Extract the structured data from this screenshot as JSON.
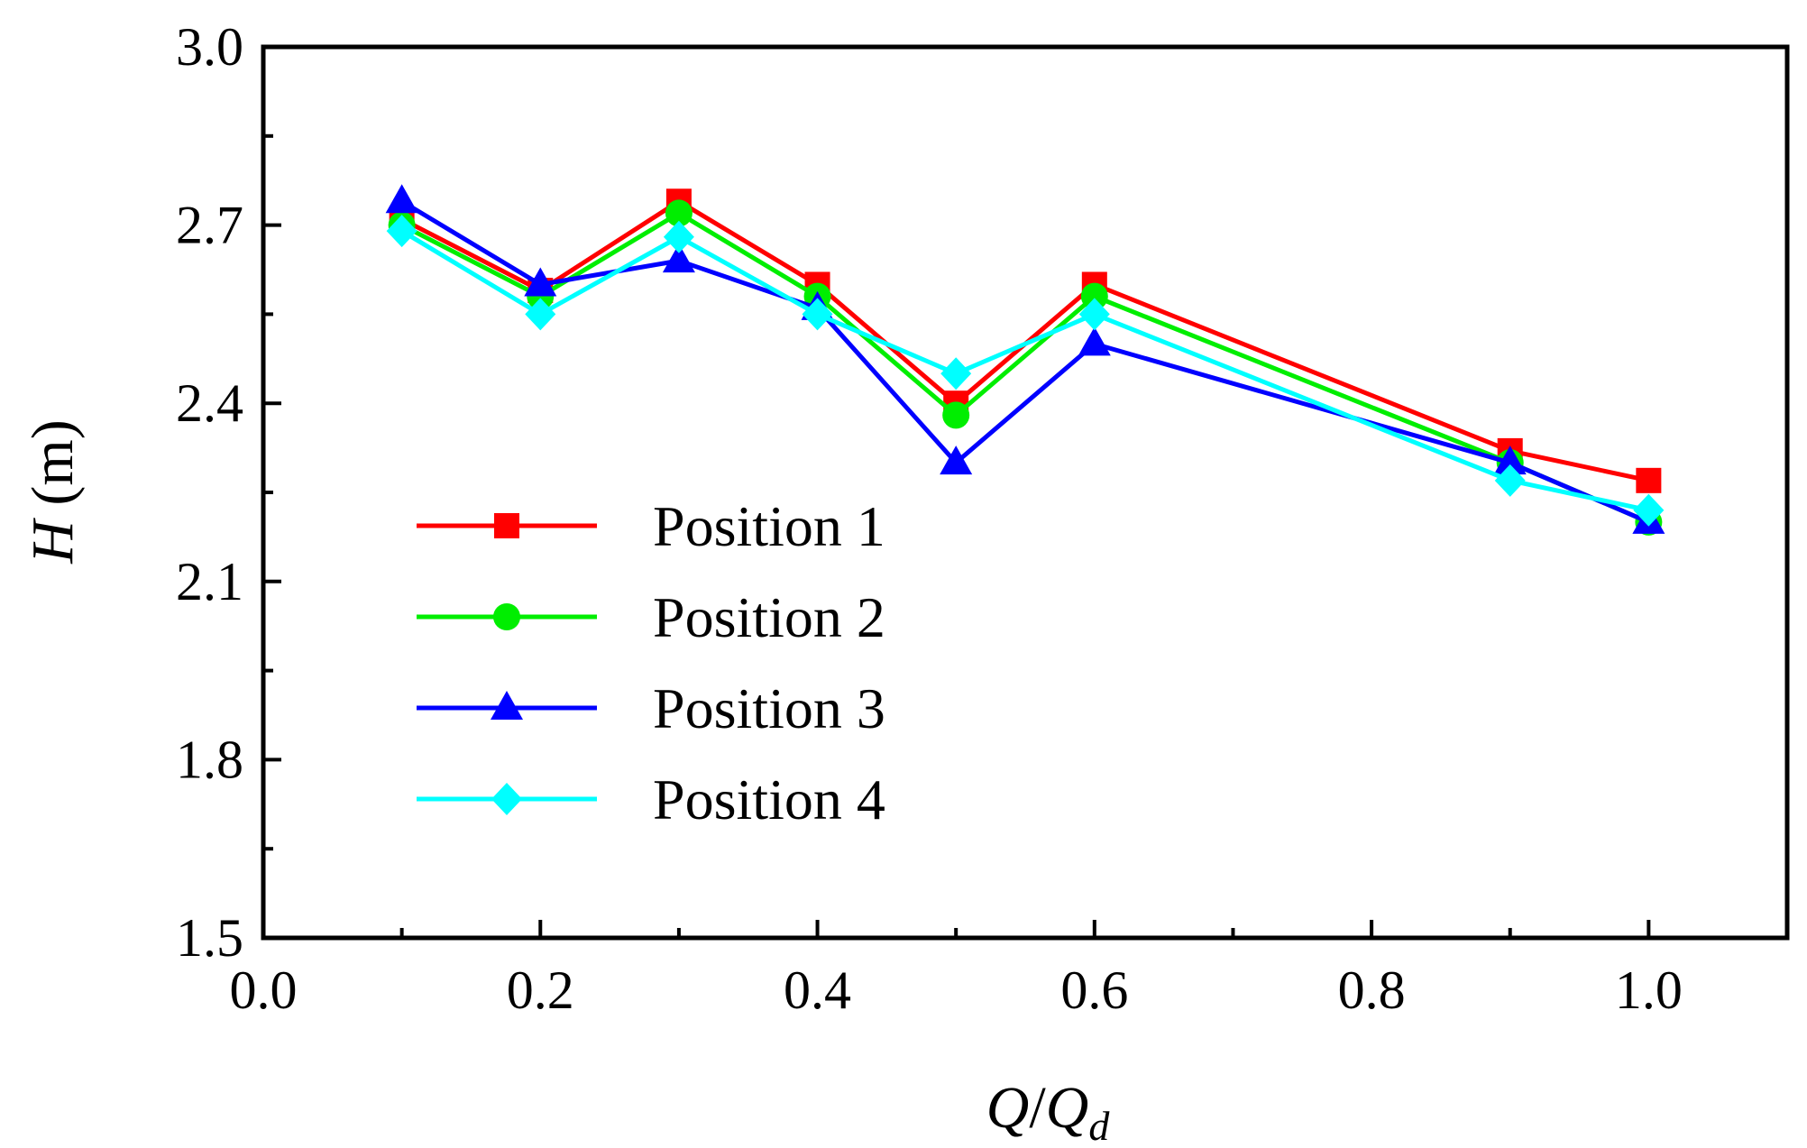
{
  "chart_data": {
    "type": "line",
    "x": [
      0.1,
      0.2,
      0.3,
      0.4,
      0.5,
      0.6,
      0.9,
      1.0
    ],
    "series": [
      {
        "name": "Position 1",
        "marker": "square",
        "color": "#ff0000",
        "values": [
          2.71,
          2.59,
          2.74,
          2.6,
          2.4,
          2.6,
          2.32,
          2.27
        ]
      },
      {
        "name": "Position 2",
        "marker": "circle",
        "color": "#00ee00",
        "values": [
          2.7,
          2.58,
          2.72,
          2.58,
          2.38,
          2.58,
          2.3,
          2.2
        ]
      },
      {
        "name": "Position 3",
        "marker": "triangle",
        "color": "#0000ff",
        "values": [
          2.74,
          2.6,
          2.64,
          2.56,
          2.3,
          2.5,
          2.3,
          2.2
        ]
      },
      {
        "name": "Position 4",
        "marker": "diamond",
        "color": "#00ffff",
        "values": [
          2.69,
          2.55,
          2.68,
          2.55,
          2.45,
          2.55,
          2.27,
          2.22
        ]
      }
    ],
    "xlim": [
      0.0,
      1.1
    ],
    "ylim": [
      1.5,
      3.0
    ],
    "x_major_ticks": [
      0.0,
      0.2,
      0.4,
      0.6,
      0.8,
      1.0
    ],
    "x_tick_labels": [
      "0.0",
      "0.2",
      "0.4",
      "0.6",
      "0.8",
      "1.0"
    ],
    "x_minor_ticks": [
      0.1,
      0.3,
      0.5,
      0.7,
      0.9
    ],
    "y_major_ticks": [
      1.5,
      1.8,
      2.1,
      2.4,
      2.7,
      3.0
    ],
    "y_tick_labels": [
      "1.5",
      "1.8",
      "2.1",
      "2.4",
      "2.7",
      "3.0"
    ],
    "y_minor_ticks": [
      1.65,
      1.95,
      2.25,
      2.55,
      2.85
    ],
    "xlabel": {
      "main": "Q",
      "slash": "/",
      "main2": "Q",
      "sub": "d"
    },
    "ylabel": {
      "var": "H",
      "unit": " (m)"
    },
    "legend_position": "lower-left",
    "grid": false
  }
}
